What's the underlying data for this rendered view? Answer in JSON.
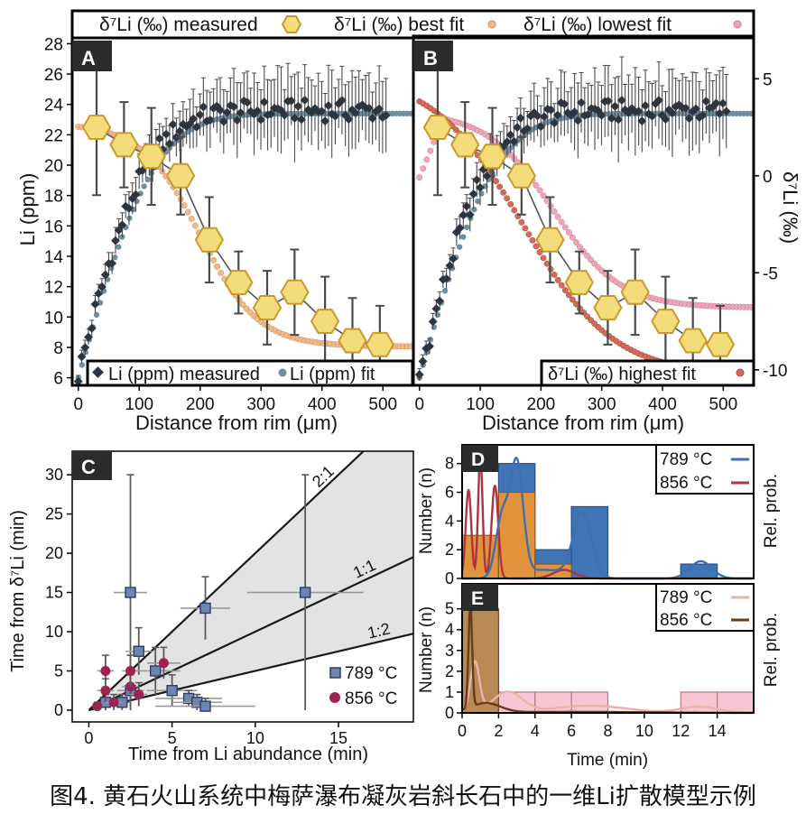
{
  "caption": "图4. 黄石火山系统中梅萨瀑布凝灰岩斜长石中的一维Li扩散模型示例",
  "colors": {
    "hex_fill": "#f5dc7a",
    "hex_stroke": "#c69a2e",
    "li_point": "#2c3540",
    "li_fit": "#6f8fa0",
    "best_fit": "#f2b88a",
    "lowest_fit": "#f0a6b8",
    "highest_fit": "#d46a5a",
    "c789": "#3f6fae",
    "c856": "#b03340",
    "c789_fill": "#3f74b6",
    "c856_fill": "#e0933a",
    "e789_fill": "#f7c6d4",
    "e856_fill": "#b98a55",
    "e789_curve": "#e8b3a8",
    "e856_curve": "#6b3a16",
    "band": "#e3e3e3"
  },
  "chart_data": [
    {
      "id": "A",
      "type": "scatter",
      "panel_label": "A",
      "title": "",
      "xlabel": "Distance from rim (μm)",
      "ylabel": "Li (ppm)",
      "y2label": "δ⁷Li (‰)",
      "xlim": [
        -10,
        550
      ],
      "ylim": [
        5.5,
        28.5
      ],
      "y2lim": [
        -10.8,
        7.2
      ],
      "x_ticks": [
        0,
        100,
        200,
        300,
        400,
        500
      ],
      "y_ticks": [
        6,
        8,
        10,
        12,
        14,
        16,
        18,
        20,
        22,
        24,
        26,
        28
      ],
      "y2_ticks": [
        5,
        0,
        -5,
        -10
      ],
      "top_legend": {
        "measured": "δ⁷Li (‰) measured",
        "best": "δ⁷Li (‰) best fit",
        "lowest": "δ⁷Li (‰) lowest fit"
      },
      "bottom_legend": {
        "measured": "Li (ppm) measured",
        "fit": "Li (ppm) fit"
      },
      "series": [
        {
          "name": "δ⁷Li (‰) measured",
          "axis": "right",
          "x": [
            30,
            75,
            120,
            168,
            215,
            263,
            310,
            355,
            405,
            450,
            495
          ],
          "y": [
            2.5,
            1.6,
            1.0,
            0.0,
            -3.3,
            -5.5,
            -6.8,
            -6.0,
            -7.5,
            -8.5,
            -8.7
          ],
          "err": [
            3.5,
            2.2,
            2.5,
            2.0,
            2.2,
            1.6,
            1.9,
            2.2,
            2.3,
            2.2,
            2.0
          ]
        },
        {
          "name": "δ⁷Li (‰) best fit",
          "axis": "right",
          "model": "logistic",
          "params": [
            2.7,
            -8.8,
            200,
            48
          ]
        },
        {
          "name": "Li (ppm) fit",
          "axis": "left",
          "model": "erf",
          "params": [
            6.0,
            23.4,
            0,
            140
          ]
        },
        {
          "name": "Li (ppm) measured",
          "axis": "left",
          "x_start": 0,
          "x_end": 505,
          "n": 92,
          "model": "erf",
          "params": [
            6.2,
            23.6,
            0,
            128
          ],
          "err": [
            0.4,
            2.2
          ]
        }
      ]
    },
    {
      "id": "B",
      "type": "scatter",
      "panel_label": "B",
      "xlabel": "Distance from rim (μm)",
      "y2label": "δ⁷Li (‰)",
      "xlim": [
        -10,
        550
      ],
      "ylim": [
        5.5,
        28.5
      ],
      "y2lim": [
        -10.8,
        7.2
      ],
      "x_ticks": [
        0,
        100,
        200,
        300,
        400,
        500
      ],
      "y2_ticks": [
        5,
        0,
        -5,
        -10
      ],
      "bottom_legend": {
        "highest": "δ⁷Li (‰) highest fit"
      },
      "series": [
        {
          "name": "δ⁷Li (‰) measured",
          "axis": "right",
          "x": [
            30,
            75,
            120,
            168,
            215,
            263,
            310,
            355,
            405,
            450,
            495
          ],
          "y": [
            2.5,
            1.6,
            1.0,
            0.0,
            -3.3,
            -5.5,
            -6.8,
            -6.0,
            -7.5,
            -8.5,
            -8.7
          ],
          "err": [
            3.5,
            2.2,
            2.5,
            2.0,
            2.2,
            1.6,
            1.9,
            2.2,
            2.3,
            2.2,
            2.0
          ]
        },
        {
          "name": "δ⁷Li (‰) lowest fit",
          "axis": "right",
          "model": "lowest",
          "params": [
            3.3,
            -6.8,
            220,
            55
          ]
        },
        {
          "name": "δ⁷Li (‰) highest fit",
          "axis": "right",
          "model": "logistic",
          "params": [
            5.3,
            -10.3,
            170,
            75
          ]
        },
        {
          "name": "Li (ppm) fit",
          "axis": "left",
          "model": "erf",
          "params": [
            6.0,
            23.4,
            0,
            140
          ]
        },
        {
          "name": "Li (ppm) measured",
          "axis": "left",
          "x_start": 0,
          "x_end": 505,
          "n": 92,
          "model": "erf",
          "params": [
            6.2,
            23.6,
            0,
            128
          ],
          "err": [
            0.4,
            2.2
          ]
        }
      ]
    },
    {
      "id": "C",
      "type": "scatter",
      "panel_label": "C",
      "xlabel": "Time from Li abundance (min)",
      "ylabel": "Time from δ⁷Li (min)",
      "xlim": [
        -1,
        19.5
      ],
      "ylim": [
        -1.5,
        33
      ],
      "x_ticks": [
        0,
        5,
        10,
        15
      ],
      "y_ticks": [
        0,
        5,
        10,
        15,
        20,
        25,
        30
      ],
      "ratio_lines": [
        {
          "label": "2:1",
          "slope": 2
        },
        {
          "label": "1:1",
          "slope": 1
        },
        {
          "label": "1:2",
          "slope": 0.5
        }
      ],
      "legend": [
        "789 °C",
        "856 °C"
      ],
      "series": [
        {
          "name": "789 °C",
          "marker": "square",
          "points": [
            [
              2.5,
              15,
              1,
              15
            ],
            [
              3,
              7.5,
              0.8,
              3
            ],
            [
              2.5,
              2.5,
              0.8,
              2
            ],
            [
              2,
              1,
              0.5,
              1
            ],
            [
              4,
              5,
              1.5,
              3
            ],
            [
              5,
              2.5,
              1.5,
              2
            ],
            [
              6,
              1.5,
              2,
              1
            ],
            [
              6.5,
              1,
              1.5,
              1
            ],
            [
              7,
              0.5,
              3,
              1
            ],
            [
              7,
              13,
              1.5,
              4
            ],
            [
              13,
              15,
              3.5,
              15
            ],
            [
              1,
              1,
              0.5,
              1
            ]
          ]
        },
        {
          "name": "856 °C",
          "marker": "circle",
          "points": [
            [
              0.5,
              0.5,
              0.3,
              0.5
            ],
            [
              1,
              2.5,
              0.5,
              1.5
            ],
            [
              1,
              5,
              0.5,
              2
            ],
            [
              1.5,
              1,
              0.5,
              1
            ],
            [
              2.5,
              3,
              0.5,
              2
            ],
            [
              2.5,
              5,
              0.5,
              2
            ],
            [
              3,
              2,
              0.5,
              1.5
            ],
            [
              4.5,
              6,
              1,
              2
            ]
          ]
        }
      ]
    },
    {
      "id": "D",
      "type": "bar",
      "panel_label": "D",
      "ylabel": "Number (n)",
      "y2label": "Rel. prob.",
      "xlim": [
        0,
        16
      ],
      "ylim": [
        0,
        9.3
      ],
      "y_ticks": [
        0,
        2,
        4,
        6,
        8
      ],
      "legend": [
        "789 °C",
        "856 °C"
      ],
      "series": [
        {
          "name": "789 °C",
          "bin_width": 2,
          "bins": [
            0,
            2,
            4,
            6,
            8,
            10,
            12,
            14
          ],
          "values": [
            0,
            8,
            2,
            5,
            0,
            0,
            1,
            0
          ]
        },
        {
          "name": "856 °C",
          "bin_width": 2,
          "bins": [
            0,
            2,
            4,
            6
          ],
          "values": [
            3,
            6,
            1,
            0
          ]
        }
      ]
    },
    {
      "id": "E",
      "type": "bar",
      "panel_label": "E",
      "xlabel": "Time (min)",
      "ylabel": "Number (n)",
      "y2label": "Rel. prob.",
      "xlim": [
        0,
        16
      ],
      "ylim": [
        0,
        6.2
      ],
      "x_ticks": [
        0,
        2,
        4,
        6,
        8,
        10,
        12,
        14
      ],
      "y_ticks": [
        0,
        1,
        2,
        3,
        4,
        5
      ],
      "legend": [
        "789 °C",
        "856 °C"
      ],
      "series": [
        {
          "name": "789 °C",
          "bin_width": 2,
          "bins": [
            0,
            2,
            4,
            6,
            8,
            10,
            12,
            14
          ],
          "values": [
            3,
            1,
            1,
            1,
            0,
            0,
            1,
            1
          ]
        },
        {
          "name": "856 °C",
          "bin_width": 2,
          "bins": [
            0
          ],
          "values": [
            5
          ]
        }
      ]
    }
  ]
}
